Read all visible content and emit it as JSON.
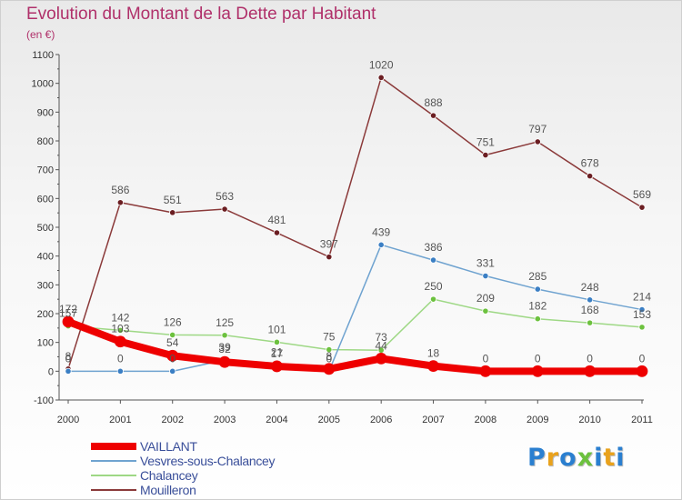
{
  "chart_data": {
    "type": "line",
    "title": "Evolution du Montant de la Dette par Habitant",
    "subtitle": "(en €)",
    "xlabel": "",
    "ylabel": "",
    "categories": [
      "2000",
      "2001",
      "2002",
      "2003",
      "2004",
      "2005",
      "2006",
      "2007",
      "2008",
      "2009",
      "2010",
      "2011"
    ],
    "ylim": [
      -100,
      1100
    ],
    "yticks": [
      -100,
      0,
      100,
      200,
      300,
      400,
      500,
      600,
      700,
      800,
      900,
      1000,
      1100
    ],
    "grid": false,
    "legend_position": "bottom-left",
    "series": [
      {
        "name": "VAILLANT",
        "color": "#ee0000",
        "marker": "#ee0000",
        "width": 8,
        "values": [
          172,
          103,
          54,
          32,
          17,
          8,
          44,
          18,
          0,
          0,
          0,
          0
        ],
        "labels": [
          "172",
          "103",
          "54",
          "32",
          "17",
          "8",
          "44",
          "18",
          "0",
          "0",
          "0",
          "0"
        ]
      },
      {
        "name": "Vesvres-sous-Chalancey",
        "color": "#6fa3d0",
        "marker": "#3b7fc4",
        "width": 1.5,
        "values": [
          0,
          0,
          0,
          39,
          21,
          0,
          439,
          386,
          331,
          285,
          248,
          214
        ],
        "labels": [
          "0",
          "0",
          "0",
          "39",
          "21",
          "0",
          "439",
          "386",
          "331",
          "285",
          "248",
          "214"
        ]
      },
      {
        "name": "Chalancey",
        "color": "#9ed885",
        "marker": "#6cc13e",
        "width": 1.5,
        "values": [
          157,
          142,
          126,
          125,
          101,
          75,
          73,
          250,
          209,
          182,
          168,
          153
        ],
        "labels": [
          "157",
          "142",
          "126",
          "125",
          "101",
          "75",
          "73",
          "250",
          "209",
          "182",
          "168",
          "153"
        ]
      },
      {
        "name": "Mouilleron",
        "color": "#8b3a3a",
        "marker": "#6b1e22",
        "width": 1.5,
        "values": [
          8,
          586,
          551,
          563,
          481,
          397,
          1020,
          888,
          751,
          797,
          678,
          569
        ],
        "labels": [
          "8",
          "586",
          "551",
          "563",
          "481",
          "397",
          "1020",
          "888",
          "751",
          "797",
          "678",
          "569"
        ]
      }
    ]
  },
  "logo": {
    "letters": [
      "P",
      "r",
      "o",
      "x",
      "i",
      "t",
      "i"
    ],
    "colors": [
      "#2a7fd0",
      "#e9a21c",
      "#2a7fd0",
      "#6cc13e",
      "#2a7fd0",
      "#e9a21c",
      "#2a7fd0"
    ]
  }
}
